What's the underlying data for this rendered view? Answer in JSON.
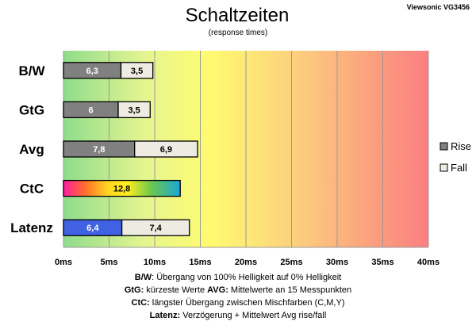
{
  "title": "Schaltzeiten",
  "subtitle": "(response times)",
  "corner_label": "Viewsonic VG3456",
  "legend": [
    {
      "label": "Rise",
      "color": "#808080"
    },
    {
      "label": "Fall",
      "color": "#eeece2"
    }
  ],
  "notes": [
    [
      {
        "key": "B/W",
        "text": ":  Übergang von 100% Helligkeit auf 0% Helligkeit"
      }
    ],
    [
      {
        "key": "GtG:",
        "text": " kürzeste  Werte"
      },
      {
        "key": "AVG:",
        "text": " Mittelwerte  an 15 Messpunkten"
      }
    ],
    [
      {
        "key": "CtC:",
        "text": " längster Übergang  zwischen Mischfarben (C,M,Y)"
      }
    ],
    [
      {
        "key": "Latenz:",
        "text": " Verzögerung  + Mittelwert Avg rise/fall"
      }
    ]
  ],
  "chart_data": {
    "type": "bar",
    "orientation": "horizontal",
    "stacked": true,
    "categories": [
      "B/W",
      "GtG",
      "Avg",
      "CtC",
      "Latenz"
    ],
    "x_unit": "ms",
    "xlim": [
      0,
      40
    ],
    "xticks": [
      0,
      5,
      10,
      15,
      20,
      25,
      30,
      35,
      40
    ],
    "xtick_labels": [
      "0ms",
      "5ms",
      "10ms",
      "15ms",
      "20ms",
      "25ms",
      "30ms",
      "35ms",
      "40ms"
    ],
    "grid": true,
    "background": "gradient green-yellow-red",
    "legend_position": "right",
    "series": [
      {
        "name": "Rise",
        "values": [
          6.3,
          6,
          7.8,
          null,
          null
        ],
        "labels": [
          "6,3",
          "6",
          "7,8",
          "",
          ""
        ]
      },
      {
        "name": "Fall",
        "values": [
          3.5,
          3.5,
          6.9,
          null,
          null
        ],
        "labels": [
          "3,5",
          "3,5",
          "6,9",
          "",
          ""
        ]
      }
    ],
    "single_bars": [
      {
        "category": "CtC",
        "value": 12.8,
        "label": "12,8",
        "fill": "rainbow"
      },
      {
        "category": "Latenz",
        "segments": [
          {
            "value": 6.4,
            "label": "6,4",
            "fill": "#3f61e2"
          },
          {
            "value": 7.4,
            "label": "7,4",
            "fill": "#eeece2"
          }
        ]
      }
    ]
  }
}
